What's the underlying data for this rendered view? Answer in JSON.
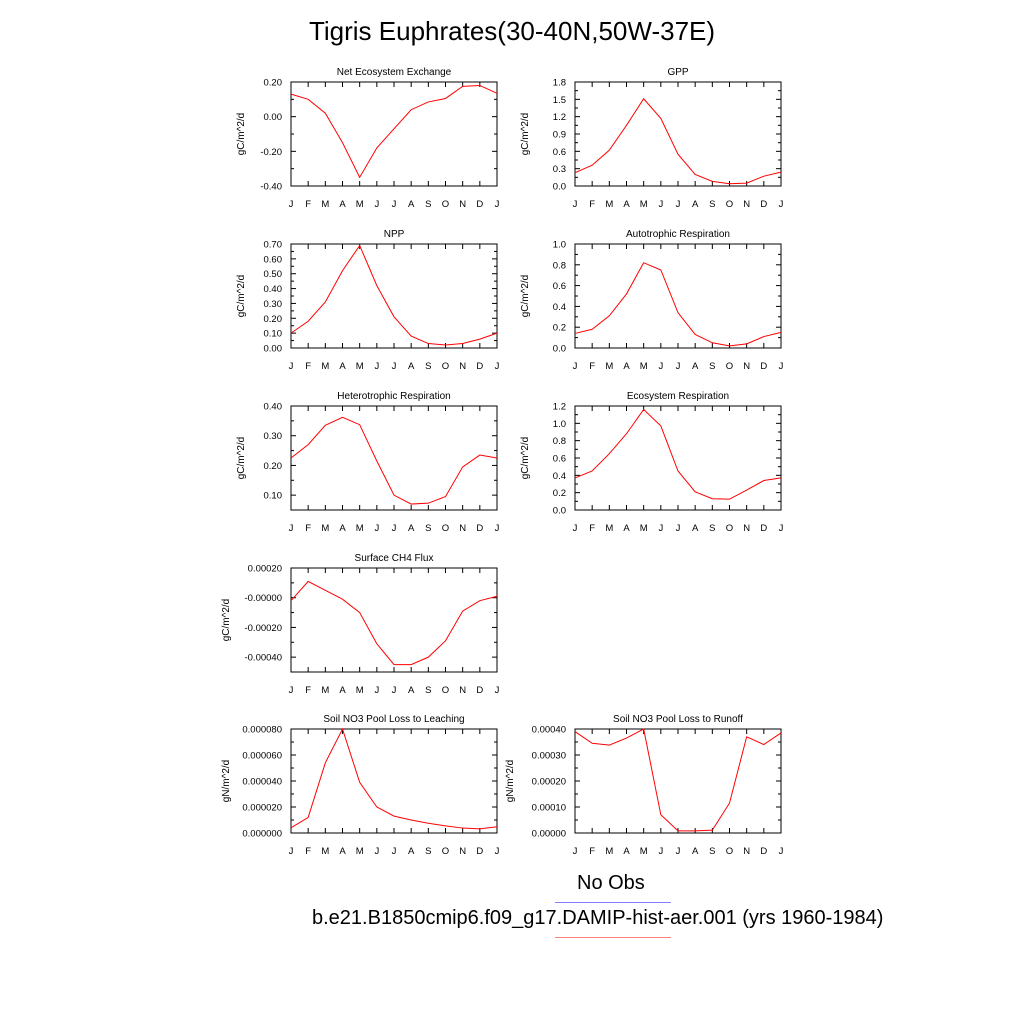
{
  "title": "Tigris Euphrates(30-40N,50W-37E)",
  "legend": {
    "obs_label": "No Obs",
    "obs_color": "#7f7fff",
    "model_label": "b.e21.B1850cmip6.f09_g17.DAMIP-hist-aer.001 (yrs 1960-1984)",
    "model_color": "#ff7f7f"
  },
  "series_color": "#ff0000",
  "chart_data": [
    {
      "type": "line",
      "title": "Net Ecosystem Exchange",
      "ylabel": "gC/m^2/d",
      "x": [
        "J",
        "F",
        "M",
        "A",
        "M",
        "J",
        "J",
        "A",
        "S",
        "O",
        "N",
        "D",
        "J"
      ],
      "values": [
        0.13,
        0.1,
        0.02,
        -0.15,
        -0.35,
        -0.18,
        -0.07,
        0.04,
        0.085,
        0.105,
        0.175,
        0.18,
        0.135
      ],
      "ylim": [
        -0.4,
        0.2
      ],
      "yticks": [
        "-0.40",
        "-0.20",
        "0.00",
        "0.20"
      ]
    },
    {
      "type": "line",
      "title": "GPP",
      "ylabel": "gC/m^2/d",
      "x": [
        "J",
        "F",
        "M",
        "A",
        "M",
        "J",
        "J",
        "A",
        "S",
        "O",
        "N",
        "D",
        "J"
      ],
      "values": [
        0.23,
        0.36,
        0.62,
        1.05,
        1.51,
        1.17,
        0.55,
        0.2,
        0.08,
        0.04,
        0.05,
        0.17,
        0.24
      ],
      "ylim": [
        0.0,
        1.8
      ],
      "yticks": [
        "0.0",
        "0.3",
        "0.6",
        "0.9",
        "1.2",
        "1.5",
        "1.8"
      ]
    },
    {
      "type": "line",
      "title": "NPP",
      "ylabel": "gC/m^2/d",
      "x": [
        "J",
        "F",
        "M",
        "A",
        "M",
        "J",
        "J",
        "A",
        "S",
        "O",
        "N",
        "D",
        "J"
      ],
      "values": [
        0.1,
        0.18,
        0.31,
        0.52,
        0.69,
        0.42,
        0.21,
        0.08,
        0.03,
        0.02,
        0.03,
        0.06,
        0.1
      ],
      "ylim": [
        0.0,
        0.7
      ],
      "yticks": [
        "0.00",
        "0.10",
        "0.20",
        "0.30",
        "0.40",
        "0.50",
        "0.60",
        "0.70"
      ]
    },
    {
      "type": "line",
      "title": "Autotrophic Respiration",
      "ylabel": "gC/m^2/d",
      "x": [
        "J",
        "F",
        "M",
        "A",
        "M",
        "J",
        "J",
        "A",
        "S",
        "O",
        "N",
        "D",
        "J"
      ],
      "values": [
        0.14,
        0.18,
        0.31,
        0.52,
        0.82,
        0.75,
        0.34,
        0.13,
        0.05,
        0.02,
        0.04,
        0.11,
        0.15
      ],
      "ylim": [
        0.0,
        1.0
      ],
      "yticks": [
        "0.0",
        "0.2",
        "0.4",
        "0.6",
        "0.8",
        "1.0"
      ]
    },
    {
      "type": "line",
      "title": "Heterotrophic Respiration",
      "ylabel": "gC/m^2/d",
      "x": [
        "J",
        "F",
        "M",
        "A",
        "M",
        "J",
        "J",
        "A",
        "S",
        "O",
        "N",
        "D",
        "J"
      ],
      "values": [
        0.225,
        0.27,
        0.335,
        0.362,
        0.337,
        0.215,
        0.1,
        0.07,
        0.073,
        0.095,
        0.195,
        0.235,
        0.225
      ],
      "ylim": [
        0.05,
        0.4
      ],
      "yticks": [
        "0.10",
        "0.20",
        "0.30",
        "0.40"
      ]
    },
    {
      "type": "line",
      "title": "Ecosystem Respiration",
      "ylabel": "gC/m^2/d",
      "x": [
        "J",
        "F",
        "M",
        "A",
        "M",
        "J",
        "J",
        "A",
        "S",
        "O",
        "N",
        "D",
        "J"
      ],
      "values": [
        0.37,
        0.45,
        0.65,
        0.88,
        1.16,
        0.97,
        0.45,
        0.21,
        0.13,
        0.125,
        0.23,
        0.34,
        0.37
      ],
      "ylim": [
        0.0,
        1.2
      ],
      "yticks": [
        "0.0",
        "0.2",
        "0.4",
        "0.6",
        "0.8",
        "1.0",
        "1.2"
      ]
    },
    {
      "type": "line",
      "title": "Surface CH4 Flux",
      "ylabel": "gC/m^2/d",
      "x": [
        "J",
        "F",
        "M",
        "A",
        "M",
        "J",
        "J",
        "A",
        "S",
        "O",
        "N",
        "D",
        "J"
      ],
      "values": [
        -2e-05,
        0.00011,
        5e-05,
        -1e-05,
        -0.0001,
        -0.00031,
        -0.00045,
        -0.00045,
        -0.0004,
        -0.00029,
        -9e-05,
        -2e-05,
        1e-05
      ],
      "ylim": [
        -0.0005,
        0.0002
      ],
      "yticks": [
        "-0.00040",
        "-0.00020",
        "-0.00000",
        "0.00020"
      ]
    },
    {
      "type": "line",
      "title": "Soil NO3 Pool Loss to Leaching",
      "ylabel": "gN/m^2/d",
      "x": [
        "J",
        "F",
        "M",
        "A",
        "M",
        "J",
        "J",
        "A",
        "S",
        "O",
        "N",
        "D",
        "J"
      ],
      "values": [
        4e-06,
        1.2e-05,
        5.4e-05,
        8e-05,
        3.9e-05,
        2e-05,
        1.3e-05,
        1e-05,
        7.5e-06,
        5.5e-06,
        3.8e-06,
        3.2e-06,
        4.8e-06
      ],
      "ylim": [
        0.0,
        8e-05
      ],
      "yticks": [
        "0.000000",
        "0.000020",
        "0.000040",
        "0.000060",
        "0.000080"
      ]
    },
    {
      "type": "line",
      "title": "Soil NO3 Pool Loss to Runoff",
      "ylabel": "gN/m^2/d",
      "x": [
        "J",
        "F",
        "M",
        "A",
        "M",
        "J",
        "J",
        "A",
        "S",
        "O",
        "N",
        "D",
        "J"
      ],
      "values": [
        0.00039,
        0.000345,
        0.000338,
        0.000365,
        0.0004,
        7e-05,
        8e-06,
        8e-06,
        1.1e-05,
        0.000115,
        0.00037,
        0.00034,
        0.000385
      ],
      "ylim": [
        0.0,
        0.0004
      ],
      "yticks": [
        "0.00000",
        "0.00010",
        "0.00020",
        "0.00030",
        "0.00040"
      ]
    }
  ]
}
